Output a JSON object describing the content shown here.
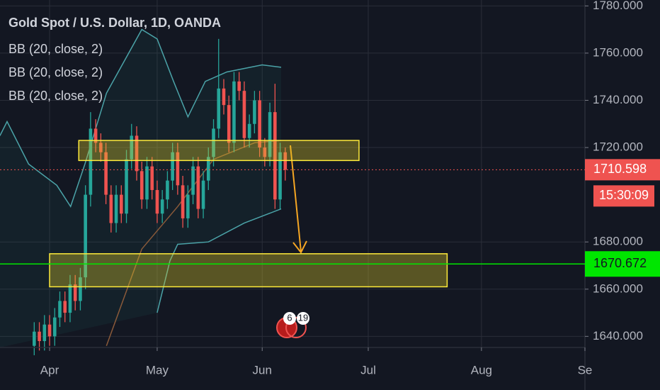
{
  "chart_data": {
    "type": "candlestick",
    "title": "Gold Spot / U.S. Dollar, 1D, OANDA",
    "indicators": [
      "BB (20, close, 2)",
      "BB (20, close, 2)",
      "BB (20, close, 2)"
    ],
    "x": [
      -3,
      -2,
      -1,
      0,
      1,
      2,
      3,
      4,
      5,
      6,
      7,
      8,
      9,
      10,
      11,
      12,
      13,
      14,
      15,
      16,
      17,
      18,
      19,
      20,
      21,
      22,
      23,
      24,
      25,
      26,
      27,
      28,
      29,
      30,
      31,
      32,
      33,
      34,
      35,
      36,
      37,
      38,
      39,
      40,
      41,
      42,
      43,
      44,
      45,
      46
    ],
    "open": [
      1636,
      1642,
      1638,
      1645,
      1640,
      1648,
      1655,
      1650,
      1662,
      1655,
      1665,
      1700,
      1728,
      1722,
      1718,
      1700,
      1688,
      1700,
      1692,
      1715,
      1725,
      1710,
      1698,
      1712,
      1702,
      1692,
      1698,
      1706,
      1718,
      1704,
      1690,
      1700,
      1712,
      1694,
      1706,
      1716,
      1728,
      1745,
      1738,
      1722,
      1748,
      1744,
      1724,
      1730,
      1740,
      1720,
      1716,
      1735,
      1698,
      1718
    ],
    "high": [
      1646,
      1646,
      1649,
      1649,
      1652,
      1659,
      1659,
      1666,
      1666,
      1669,
      1704,
      1735,
      1732,
      1726,
      1722,
      1704,
      1704,
      1704,
      1719,
      1730,
      1729,
      1714,
      1716,
      1716,
      1706,
      1702,
      1710,
      1722,
      1722,
      1708,
      1704,
      1716,
      1716,
      1710,
      1720,
      1732,
      1766,
      1749,
      1742,
      1752,
      1752,
      1748,
      1734,
      1744,
      1744,
      1724,
      1739,
      1747,
      1722,
      1720
    ],
    "low": [
      1632,
      1634,
      1634,
      1636,
      1636,
      1644,
      1646,
      1646,
      1651,
      1651,
      1660,
      1695,
      1718,
      1714,
      1696,
      1684,
      1684,
      1688,
      1688,
      1711,
      1706,
      1694,
      1694,
      1698,
      1688,
      1688,
      1694,
      1702,
      1700,
      1686,
      1686,
      1696,
      1690,
      1690,
      1702,
      1712,
      1724,
      1734,
      1718,
      1718,
      1740,
      1720,
      1720,
      1726,
      1716,
      1712,
      1712,
      1694,
      1694,
      1706
    ],
    "close": [
      1642,
      1638,
      1645,
      1640,
      1648,
      1655,
      1650,
      1662,
      1655,
      1665,
      1700,
      1728,
      1722,
      1718,
      1700,
      1688,
      1700,
      1692,
      1715,
      1725,
      1710,
      1698,
      1712,
      1702,
      1692,
      1698,
      1706,
      1718,
      1704,
      1690,
      1700,
      1712,
      1694,
      1706,
      1716,
      1728,
      1745,
      1738,
      1722,
      1748,
      1744,
      1724,
      1730,
      1740,
      1720,
      1716,
      1735,
      1698,
      1718,
      1710.598
    ],
    "up_color": "#26a69a",
    "down_color": "#ef5350",
    "bands": {
      "upper": {
        "x": [
          -9.7,
          -8.3,
          -4.1,
          1.4,
          4.1,
          6.9,
          11.1,
          18,
          21,
          24.2,
          27,
          30.4,
          34.6,
          41.5,
          45.2
        ],
        "values": [
          1725,
          1731,
          1713,
          1704,
          1695,
          1713,
          1743,
          1770,
          1766,
          1748,
          1733,
          1748,
          1752,
          1755,
          1754
        ],
        "color": "#4ba3a8"
      },
      "lower": {
        "x": [
          21,
          23.5,
          25,
          31,
          38,
          45.2
        ],
        "values": [
          1650,
          1672,
          1679,
          1680,
          1688,
          1694
        ],
        "color": "#4ba3a8"
      },
      "middle": {
        "x": [
          11.1,
          18,
          25,
          32,
          40,
          45.2
        ],
        "values": [
          1636,
          1677,
          1695,
          1715,
          1722,
          1723
        ],
        "color": "#8a5a3a"
      }
    },
    "zones": [
      {
        "x": [
          5.7,
          60.4
        ],
        "y": [
          1714.5,
          1723
        ]
      },
      {
        "x": [
          0,
          77.6
        ],
        "y": [
          1661,
          1675
        ]
      }
    ],
    "price_lines": [
      {
        "value": 1710.598,
        "color": "#ef5350",
        "timer": "15:30:09"
      },
      {
        "value": 1670.672,
        "color": "#00e600"
      }
    ],
    "events": [
      "6",
      "19"
    ],
    "xlim": [
      -9.68,
      104.5
    ],
    "xticks": [
      {
        "value": 0,
        "label": "Apr"
      },
      {
        "value": 21,
        "label": "May"
      },
      {
        "value": 41.5,
        "label": "Jun"
      },
      {
        "value": 62.2,
        "label": "Jul"
      },
      {
        "value": 84.3,
        "label": "Aug"
      },
      {
        "value": 104.5,
        "label": "Se"
      }
    ],
    "ylim": [
      1635.3,
      1782.5
    ],
    "yticks": [
      {
        "value": 1640,
        "label": "1640.000"
      },
      {
        "value": 1660,
        "label": "1660.000"
      },
      {
        "value": 1680,
        "label": "1680.000"
      },
      {
        "value": 1720,
        "label": "1720.000"
      },
      {
        "value": 1740,
        "label": "1740.000"
      },
      {
        "value": 1760,
        "label": "1760.000"
      },
      {
        "value": 1780,
        "label": "1780.000"
      }
    ],
    "grid": true
  }
}
